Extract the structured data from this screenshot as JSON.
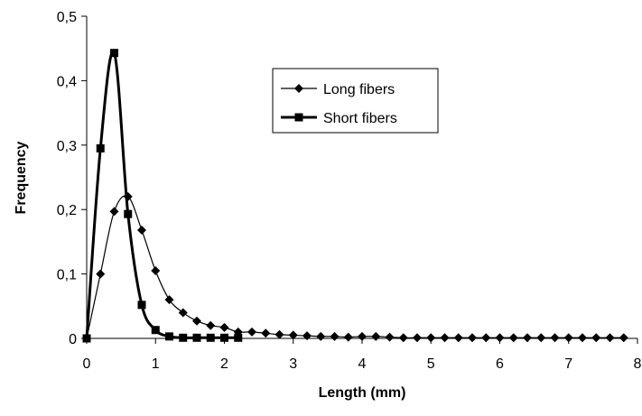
{
  "chart_data": {
    "type": "line",
    "xlabel": "Length (mm)",
    "ylabel": "Frequency",
    "xlim": [
      0,
      8
    ],
    "ylim": [
      0,
      0.5
    ],
    "x_ticks": [
      "0",
      "1",
      "2",
      "3",
      "4",
      "5",
      "6",
      "7",
      "8"
    ],
    "y_ticks": [
      "0",
      "0,1",
      "0,2",
      "0,3",
      "0,4",
      "0,5"
    ],
    "grid": false,
    "legend_position": "top-right",
    "series": [
      {
        "name": "Long fibers",
        "marker": "diamond",
        "color": "#000000",
        "x": [
          0,
          0.2,
          0.4,
          0.6,
          0.8,
          1.0,
          1.2,
          1.4,
          1.6,
          1.8,
          2.0,
          2.2,
          2.4,
          2.6,
          2.8,
          3.0,
          3.2,
          3.4,
          3.6,
          3.8,
          4.0,
          4.2,
          4.4,
          4.6,
          4.8,
          5.0,
          5.2,
          5.4,
          5.6,
          5.8,
          6.0,
          6.2,
          6.4,
          6.6,
          6.8,
          7.0,
          7.2,
          7.4,
          7.6,
          7.8
        ],
        "y": [
          0,
          0.1,
          0.197,
          0.22,
          0.168,
          0.105,
          0.06,
          0.04,
          0.027,
          0.02,
          0.017,
          0.01,
          0.01,
          0.008,
          0.006,
          0.005,
          0.004,
          0.003,
          0.003,
          0.002,
          0.003,
          0.003,
          0.002,
          0.001,
          0.001,
          0.001,
          0.001,
          0.001,
          0.001,
          0.001,
          0.001,
          0.001,
          0.001,
          0.001,
          0.001,
          0.001,
          0.001,
          0.001,
          0.001,
          0.001
        ]
      },
      {
        "name": "Short fibers",
        "marker": "square",
        "color": "#000000",
        "x": [
          0,
          0.2,
          0.4,
          0.6,
          0.8,
          1.0,
          1.2,
          1.4,
          1.6,
          1.8,
          2.0,
          2.2
        ],
        "y": [
          0,
          0.295,
          0.443,
          0.193,
          0.052,
          0.013,
          0.003,
          0.001,
          0.001,
          0.001,
          0.001,
          0.001
        ]
      }
    ]
  }
}
